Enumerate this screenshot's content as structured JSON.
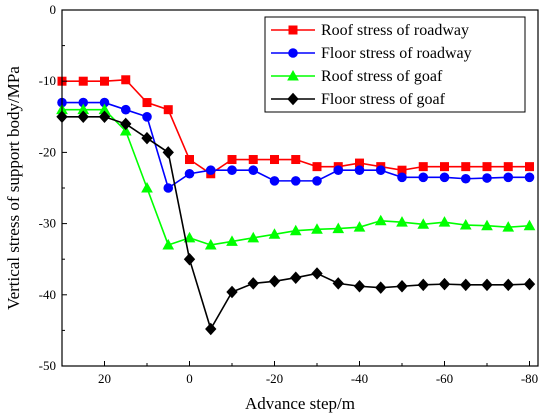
{
  "chart_data": {
    "type": "line",
    "xlabel": "Advance step/m",
    "ylabel": "Vertical stress of support body/MPa",
    "xlim": [
      30,
      -82
    ],
    "ylim": [
      -50,
      0
    ],
    "x_ticks": [
      20,
      0,
      -20,
      -40,
      -60,
      -80
    ],
    "x_tick_labels": [
      "20",
      "0",
      "-20",
      "-40",
      "-60",
      "-80"
    ],
    "y_ticks": [
      0,
      -10,
      -20,
      -30,
      -40,
      -50
    ],
    "y_tick_labels": [
      "0",
      "-10",
      "-20",
      "-30",
      "-40",
      "-50"
    ],
    "grid": false,
    "legend_position": "top-right",
    "x": [
      30,
      25,
      20,
      15,
      10,
      5,
      0,
      -5,
      -10,
      -15,
      -20,
      -25,
      -30,
      -35,
      -40,
      -45,
      -50,
      -55,
      -60,
      -65,
      -70,
      -75,
      -80
    ],
    "series": [
      {
        "name": "Roof  stress of roadway",
        "color": "#ff0000",
        "marker": "square",
        "values": [
          -10,
          -10,
          -10,
          -9.8,
          -13,
          -14,
          -21,
          -23,
          -21,
          -21,
          -21,
          -21,
          -22,
          -22,
          -21.5,
          -22,
          -22.5,
          -22,
          -22,
          -22,
          -22,
          -22,
          -22
        ]
      },
      {
        "name": "Floor  stress of roadway",
        "color": "#0000ff",
        "marker": "circle",
        "values": [
          -13,
          -13,
          -13,
          -14,
          -15,
          -25,
          -23,
          -22.5,
          -22.5,
          -22.5,
          -24,
          -24,
          -24,
          -22.5,
          -22.5,
          -22.5,
          -23.5,
          -23.5,
          -23.5,
          -23.7,
          -23.6,
          -23.5,
          -23.5
        ]
      },
      {
        "name": "Roof stress of goaf",
        "color": "#00ff00",
        "marker": "triangle",
        "values": [
          -14,
          -14,
          -14,
          -17,
          -25,
          -33,
          -32,
          -33,
          -32.5,
          -32,
          -31.5,
          -31,
          -30.8,
          -30.7,
          -30.5,
          -29.6,
          -29.8,
          -30.1,
          -29.8,
          -30.2,
          -30.3,
          -30.5,
          -30.3
        ]
      },
      {
        "name": "Floor stress of goaf",
        "color": "#000000",
        "marker": "diamond",
        "values": [
          -15,
          -15,
          -15,
          -16,
          -18,
          -20,
          -35,
          -44.8,
          -39.6,
          -38.4,
          -38.1,
          -37.6,
          -37,
          -38.4,
          -38.8,
          -39,
          -38.8,
          -38.6,
          -38.5,
          -38.6,
          -38.6,
          -38.6,
          -38.5
        ]
      }
    ]
  }
}
